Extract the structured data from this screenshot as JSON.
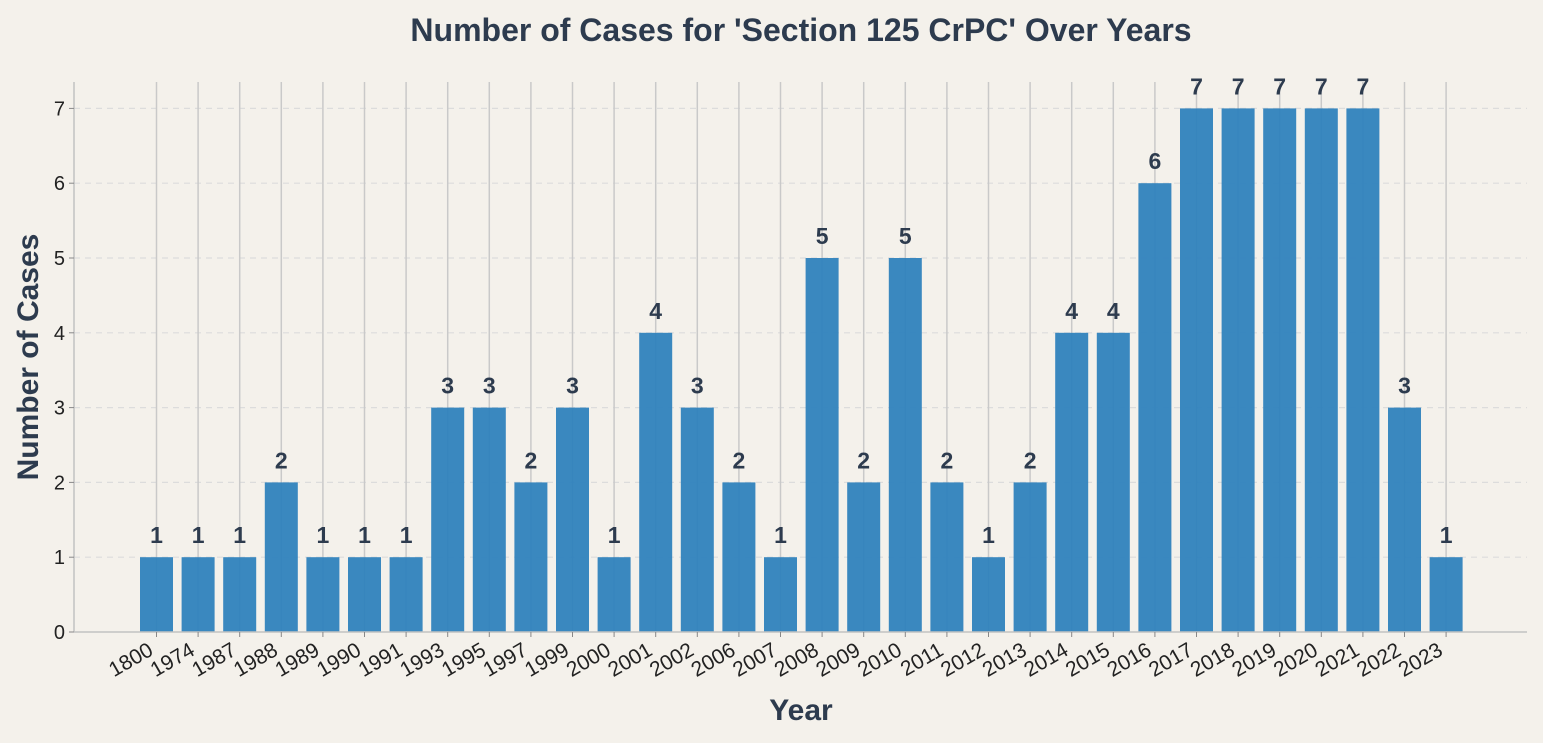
{
  "chart_data": {
    "type": "bar",
    "title": "Number of Cases for 'Section 125 CrPC' Over Years",
    "xlabel": "Year",
    "ylabel": "Number of Cases",
    "categories": [
      "1800",
      "1974",
      "1987",
      "1988",
      "1989",
      "1990",
      "1991",
      "1993",
      "1995",
      "1997",
      "1999",
      "2000",
      "2001",
      "2002",
      "2006",
      "2007",
      "2008",
      "2009",
      "2010",
      "2011",
      "2012",
      "2013",
      "2014",
      "2015",
      "2016",
      "2017",
      "2018",
      "2019",
      "2020",
      "2021",
      "2022",
      "2023"
    ],
    "values": [
      1,
      1,
      1,
      2,
      1,
      1,
      1,
      3,
      3,
      2,
      3,
      1,
      4,
      3,
      2,
      1,
      5,
      2,
      5,
      2,
      1,
      2,
      4,
      4,
      6,
      7,
      7,
      7,
      7,
      7,
      3,
      1
    ],
    "ylim": [
      0,
      7.35
    ],
    "yticks": [
      0,
      1,
      2,
      3,
      4,
      5,
      6,
      7
    ],
    "grid": true,
    "bar_color": "#2f82bd",
    "text_color": "#2d3b4e",
    "background": "#f4f1eb"
  }
}
